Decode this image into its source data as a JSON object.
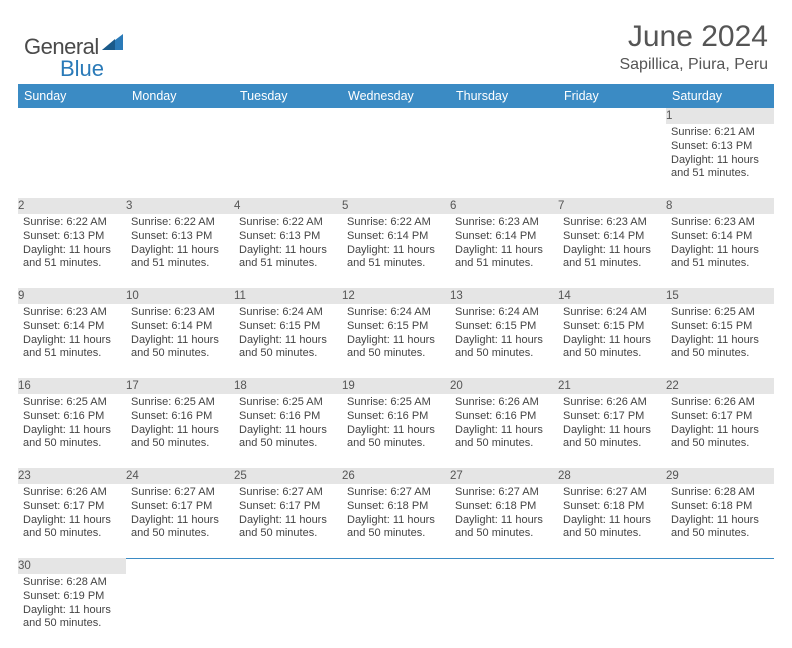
{
  "brand": {
    "word1": "General",
    "word2": "Blue"
  },
  "title": "June 2024",
  "subtitle": "Sapillica, Piura, Peru",
  "colors": {
    "header_bg": "#3b8bc4",
    "header_text": "#ffffff",
    "daynum_bg": "#e5e5e5",
    "rule": "#3b8bc4",
    "text": "#444444",
    "title_text": "#555555"
  },
  "weekdays": [
    "Sunday",
    "Monday",
    "Tuesday",
    "Wednesday",
    "Thursday",
    "Friday",
    "Saturday"
  ],
  "weeks": [
    [
      null,
      null,
      null,
      null,
      null,
      null,
      {
        "n": "1",
        "sunrise": "6:21 AM",
        "sunset": "6:13 PM",
        "daylight": "11 hours and 51 minutes."
      }
    ],
    [
      {
        "n": "2",
        "sunrise": "6:22 AM",
        "sunset": "6:13 PM",
        "daylight": "11 hours and 51 minutes."
      },
      {
        "n": "3",
        "sunrise": "6:22 AM",
        "sunset": "6:13 PM",
        "daylight": "11 hours and 51 minutes."
      },
      {
        "n": "4",
        "sunrise": "6:22 AM",
        "sunset": "6:13 PM",
        "daylight": "11 hours and 51 minutes."
      },
      {
        "n": "5",
        "sunrise": "6:22 AM",
        "sunset": "6:14 PM",
        "daylight": "11 hours and 51 minutes."
      },
      {
        "n": "6",
        "sunrise": "6:23 AM",
        "sunset": "6:14 PM",
        "daylight": "11 hours and 51 minutes."
      },
      {
        "n": "7",
        "sunrise": "6:23 AM",
        "sunset": "6:14 PM",
        "daylight": "11 hours and 51 minutes."
      },
      {
        "n": "8",
        "sunrise": "6:23 AM",
        "sunset": "6:14 PM",
        "daylight": "11 hours and 51 minutes."
      }
    ],
    [
      {
        "n": "9",
        "sunrise": "6:23 AM",
        "sunset": "6:14 PM",
        "daylight": "11 hours and 51 minutes."
      },
      {
        "n": "10",
        "sunrise": "6:23 AM",
        "sunset": "6:14 PM",
        "daylight": "11 hours and 50 minutes."
      },
      {
        "n": "11",
        "sunrise": "6:24 AM",
        "sunset": "6:15 PM",
        "daylight": "11 hours and 50 minutes."
      },
      {
        "n": "12",
        "sunrise": "6:24 AM",
        "sunset": "6:15 PM",
        "daylight": "11 hours and 50 minutes."
      },
      {
        "n": "13",
        "sunrise": "6:24 AM",
        "sunset": "6:15 PM",
        "daylight": "11 hours and 50 minutes."
      },
      {
        "n": "14",
        "sunrise": "6:24 AM",
        "sunset": "6:15 PM",
        "daylight": "11 hours and 50 minutes."
      },
      {
        "n": "15",
        "sunrise": "6:25 AM",
        "sunset": "6:15 PM",
        "daylight": "11 hours and 50 minutes."
      }
    ],
    [
      {
        "n": "16",
        "sunrise": "6:25 AM",
        "sunset": "6:16 PM",
        "daylight": "11 hours and 50 minutes."
      },
      {
        "n": "17",
        "sunrise": "6:25 AM",
        "sunset": "6:16 PM",
        "daylight": "11 hours and 50 minutes."
      },
      {
        "n": "18",
        "sunrise": "6:25 AM",
        "sunset": "6:16 PM",
        "daylight": "11 hours and 50 minutes."
      },
      {
        "n": "19",
        "sunrise": "6:25 AM",
        "sunset": "6:16 PM",
        "daylight": "11 hours and 50 minutes."
      },
      {
        "n": "20",
        "sunrise": "6:26 AM",
        "sunset": "6:16 PM",
        "daylight": "11 hours and 50 minutes."
      },
      {
        "n": "21",
        "sunrise": "6:26 AM",
        "sunset": "6:17 PM",
        "daylight": "11 hours and 50 minutes."
      },
      {
        "n": "22",
        "sunrise": "6:26 AM",
        "sunset": "6:17 PM",
        "daylight": "11 hours and 50 minutes."
      }
    ],
    [
      {
        "n": "23",
        "sunrise": "6:26 AM",
        "sunset": "6:17 PM",
        "daylight": "11 hours and 50 minutes."
      },
      {
        "n": "24",
        "sunrise": "6:27 AM",
        "sunset": "6:17 PM",
        "daylight": "11 hours and 50 minutes."
      },
      {
        "n": "25",
        "sunrise": "6:27 AM",
        "sunset": "6:17 PM",
        "daylight": "11 hours and 50 minutes."
      },
      {
        "n": "26",
        "sunrise": "6:27 AM",
        "sunset": "6:18 PM",
        "daylight": "11 hours and 50 minutes."
      },
      {
        "n": "27",
        "sunrise": "6:27 AM",
        "sunset": "6:18 PM",
        "daylight": "11 hours and 50 minutes."
      },
      {
        "n": "28",
        "sunrise": "6:27 AM",
        "sunset": "6:18 PM",
        "daylight": "11 hours and 50 minutes."
      },
      {
        "n": "29",
        "sunrise": "6:28 AM",
        "sunset": "6:18 PM",
        "daylight": "11 hours and 50 minutes."
      }
    ],
    [
      {
        "n": "30",
        "sunrise": "6:28 AM",
        "sunset": "6:19 PM",
        "daylight": "11 hours and 50 minutes."
      },
      null,
      null,
      null,
      null,
      null,
      null
    ]
  ],
  "labels": {
    "sunrise": "Sunrise:",
    "sunset": "Sunset:",
    "daylight": "Daylight:"
  }
}
